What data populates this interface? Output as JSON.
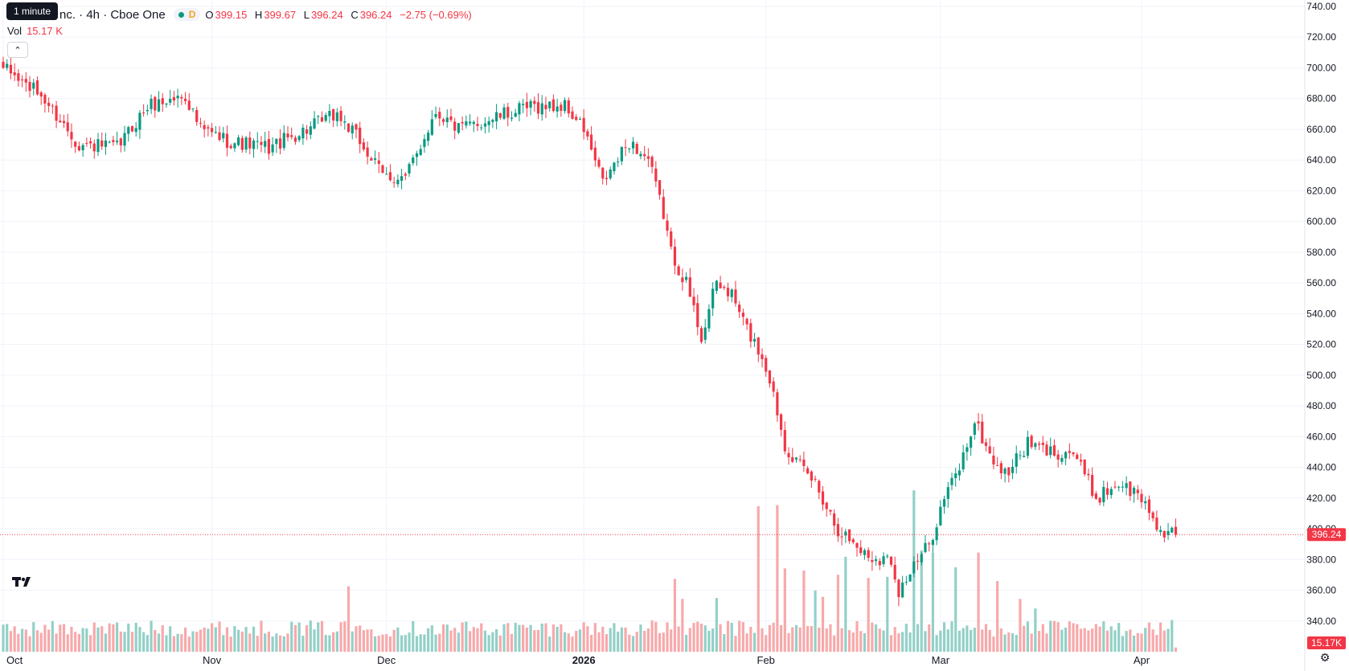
{
  "header": {
    "symbol_fragment": "nc. · 4h · Cboe One",
    "interval_letter": "D",
    "tooltip": "1 minute",
    "ohlc": {
      "open_label": "O",
      "open": "399.15",
      "high_label": "H",
      "high": "399.67",
      "low_label": "L",
      "low": "396.24",
      "close_label": "C",
      "close": "396.24",
      "change": "−2.75 (−0.69%)"
    },
    "vol_label": "Vol",
    "vol_value": "15.17 K"
  },
  "colors": {
    "up": "#089981",
    "down": "#f23645",
    "up_vol": "#93d0c7",
    "down_vol": "#f7a9ab",
    "grid": "#f0f3fa",
    "axis_text": "#131722"
  },
  "icons": {
    "collapse": "chevron-up-icon",
    "logo": "tradingview-logo",
    "settings": "gear-icon"
  },
  "chart_data": {
    "type": "candlestick",
    "y_axis": {
      "min": 320,
      "max": 740,
      "ticks": [
        "740.00",
        "720.00",
        "700.00",
        "680.00",
        "660.00",
        "640.00",
        "620.00",
        "600.00",
        "580.00",
        "560.00",
        "540.00",
        "520.00",
        "500.00",
        "480.00",
        "460.00",
        "440.00",
        "420.00",
        "400.00",
        "380.00",
        "360.00",
        "340.00"
      ]
    },
    "x_axis": {
      "labels": [
        {
          "text": "Oct",
          "at": 0
        },
        {
          "text": "Nov",
          "at": 55
        },
        {
          "text": "Dec",
          "at": 101
        },
        {
          "text": "2026",
          "at": 153,
          "bold": true
        },
        {
          "text": "Feb",
          "at": 201
        },
        {
          "text": "Mar",
          "at": 247
        },
        {
          "text": "Apr",
          "at": 300
        }
      ]
    },
    "last_price_label": "396.24",
    "last_volume_label": "15.17K",
    "close_anchors": [
      [
        0,
        700
      ],
      [
        10,
        682
      ],
      [
        20,
        650
      ],
      [
        30,
        648
      ],
      [
        38,
        675
      ],
      [
        48,
        682
      ],
      [
        52,
        660
      ],
      [
        60,
        652
      ],
      [
        70,
        648
      ],
      [
        80,
        660
      ],
      [
        88,
        670
      ],
      [
        94,
        652
      ],
      [
        100,
        630
      ],
      [
        106,
        628
      ],
      [
        114,
        672
      ],
      [
        120,
        660
      ],
      [
        130,
        668
      ],
      [
        140,
        675
      ],
      [
        148,
        675
      ],
      [
        153,
        660
      ],
      [
        158,
        625
      ],
      [
        165,
        652
      ],
      [
        170,
        640
      ],
      [
        174,
        605
      ],
      [
        176,
        580
      ],
      [
        180,
        560
      ],
      [
        184,
        525
      ],
      [
        188,
        560
      ],
      [
        192,
        552
      ],
      [
        196,
        530
      ],
      [
        200,
        512
      ],
      [
        202,
        498
      ],
      [
        206,
        455
      ],
      [
        210,
        440
      ],
      [
        214,
        430
      ],
      [
        220,
        400
      ],
      [
        228,
        382
      ],
      [
        234,
        380
      ],
      [
        236,
        360
      ],
      [
        240,
        375
      ],
      [
        244,
        390
      ],
      [
        248,
        420
      ],
      [
        252,
        440
      ],
      [
        256,
        470
      ],
      [
        260,
        448
      ],
      [
        264,
        435
      ],
      [
        270,
        455
      ],
      [
        276,
        450
      ],
      [
        282,
        450
      ],
      [
        288,
        420
      ],
      [
        294,
        430
      ],
      [
        300,
        420
      ],
      [
        306,
        395
      ],
      [
        309,
        396.24
      ]
    ],
    "volume_scale_max": 16000,
    "volume_level_typical": 2200,
    "volume_spikes": [
      [
        89,
        2800
      ],
      [
        91,
        6200
      ],
      [
        113,
        2500
      ],
      [
        177,
        6900
      ],
      [
        179,
        5000
      ],
      [
        188,
        5100
      ],
      [
        199,
        13800
      ],
      [
        204,
        13900
      ],
      [
        206,
        7900
      ],
      [
        211,
        7700
      ],
      [
        214,
        5800
      ],
      [
        216,
        5200
      ],
      [
        220,
        7300
      ],
      [
        222,
        9000
      ],
      [
        228,
        7000
      ],
      [
        233,
        7100
      ],
      [
        240,
        15300
      ],
      [
        242,
        9600
      ],
      [
        245,
        9400
      ],
      [
        251,
        8000
      ],
      [
        257,
        9400
      ],
      [
        262,
        6700
      ],
      [
        268,
        5000
      ],
      [
        272,
        4100
      ],
      [
        308,
        3000
      ]
    ]
  }
}
